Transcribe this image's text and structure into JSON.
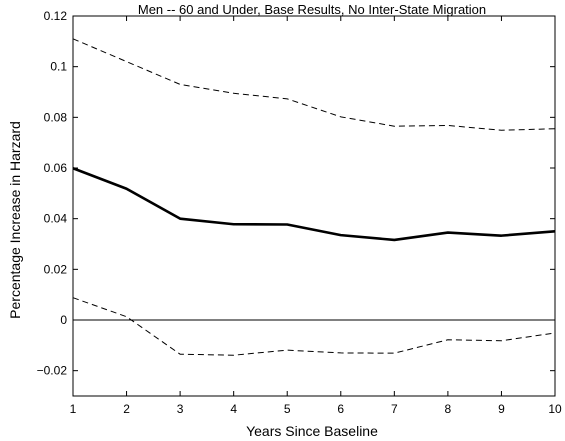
{
  "chart_data": {
    "type": "line",
    "title": "Men -- 60 and Under, Base Results, No Inter-State Migration",
    "xlabel": "Years Since Baseline",
    "ylabel": "Percentage Increase in Harzard",
    "xlim": [
      1,
      10
    ],
    "ylim": [
      -0.03,
      0.12
    ],
    "x_ticks": [
      1,
      2,
      3,
      4,
      5,
      6,
      7,
      8,
      9,
      10
    ],
    "y_ticks": [
      -0.02,
      0,
      0.02,
      0.04,
      0.06,
      0.08,
      0.1,
      0.12
    ],
    "y_tick_labels": [
      "−0.02",
      "0",
      "0.02",
      "0.04",
      "0.06",
      "0.08",
      "0.1",
      "0.12"
    ],
    "grid": false,
    "x": [
      1,
      2,
      3,
      4,
      5,
      6,
      7,
      8,
      9,
      10
    ],
    "series": [
      {
        "style": "dashed",
        "values": [
          0.111,
          0.102,
          0.093,
          0.0895,
          0.0873,
          0.0802,
          0.0765,
          0.0768,
          0.0749,
          0.0755
        ],
        "color": "#000000"
      },
      {
        "style": "solid-thick",
        "values": [
          0.0599,
          0.0518,
          0.04,
          0.0378,
          0.0377,
          0.0335,
          0.0316,
          0.0345,
          0.0333,
          0.035
        ],
        "color": "#000000"
      },
      {
        "style": "dashed",
        "values": [
          0.0088,
          0.0013,
          -0.0135,
          -0.0139,
          -0.0119,
          -0.013,
          -0.0131,
          -0.0078,
          -0.0082,
          -0.0051
        ],
        "color": "#000000"
      }
    ],
    "reference_line": {
      "y": 0,
      "color": "#000000"
    }
  }
}
